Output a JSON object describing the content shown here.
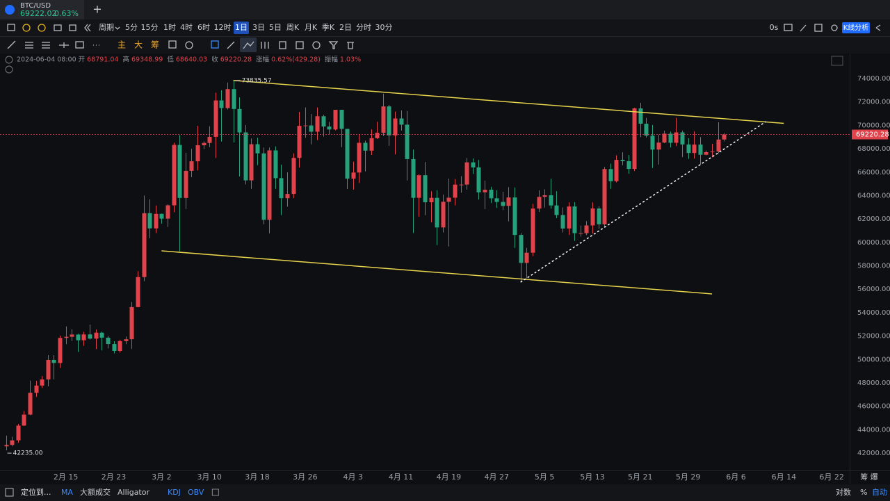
{
  "tab": {
    "symbol": "BTC/USD",
    "price": "69222.02",
    "change": "0.63%",
    "add": "+"
  },
  "periods": {
    "label": "周期",
    "items": [
      "5分",
      "15分",
      "1时",
      "4时",
      "6时",
      "12时",
      "1日",
      "3日",
      "5日",
      "周K",
      "月K",
      "季K",
      "2日",
      "分时",
      "30分"
    ],
    "active": 6
  },
  "toolbar_right": {
    "timer": "0s",
    "analysis": "K线分析"
  },
  "draw_tools": [
    "主",
    "大",
    "筹"
  ],
  "info": {
    "date": "2024-06-04 08:00",
    "open": "开",
    "high": "高",
    "low": "低",
    "close": "收",
    "change_label": "涨幅",
    "change": "0.62%(429.28)",
    "amp_label": "振幅",
    "amp": "1.03%"
  },
  "bottom": {
    "locate": "定位到...",
    "indicators": [
      "MA",
      "大额成交",
      "Alligator",
      "KDJ",
      "OBV"
    ],
    "right": [
      "对数",
      "%",
      "自动"
    ],
    "corner": "筹 爆"
  },
  "chart_data": {
    "type": "candlestick",
    "up_color": "#e0434b",
    "down_color": "#26a17b",
    "x": [
      "2024-02-05",
      "2024-02-06",
      "2024-02-07",
      "2024-02-08",
      "2024-02-09",
      "2024-02-10",
      "2024-02-11",
      "2024-02-12",
      "2024-02-13",
      "2024-02-14",
      "2024-02-15",
      "2024-02-16",
      "2024-02-17",
      "2024-02-18",
      "2024-02-19",
      "2024-02-20",
      "2024-02-21",
      "2024-02-22",
      "2024-02-23",
      "2024-02-24",
      "2024-02-25",
      "2024-02-26",
      "2024-02-27",
      "2024-02-28",
      "2024-02-29",
      "2024-03-01",
      "2024-03-02",
      "2024-03-03",
      "2024-03-04",
      "2024-03-05",
      "2024-03-06",
      "2024-03-07",
      "2024-03-08",
      "2024-03-09",
      "2024-03-10",
      "2024-03-11",
      "2024-03-12",
      "2024-03-13",
      "2024-03-14",
      "2024-03-15",
      "2024-03-16",
      "2024-03-17",
      "2024-03-18",
      "2024-03-19",
      "2024-03-20",
      "2024-03-21",
      "2024-03-22",
      "2024-03-23",
      "2024-03-24",
      "2024-03-25",
      "2024-03-26",
      "2024-03-27",
      "2024-03-28",
      "2024-03-29",
      "2024-03-30",
      "2024-03-31",
      "2024-04-01",
      "2024-04-02",
      "2024-04-03",
      "2024-04-04",
      "2024-04-05",
      "2024-04-06",
      "2024-04-07",
      "2024-04-08",
      "2024-04-09",
      "2024-04-10",
      "2024-04-11",
      "2024-04-12",
      "2024-04-13",
      "2024-04-14",
      "2024-04-15",
      "2024-04-16",
      "2024-04-17",
      "2024-04-18",
      "2024-04-19",
      "2024-04-20",
      "2024-04-21",
      "2024-04-22",
      "2024-04-23",
      "2024-04-24",
      "2024-04-25",
      "2024-04-26",
      "2024-04-27",
      "2024-04-28",
      "2024-04-29",
      "2024-04-30",
      "2024-05-01",
      "2024-05-02",
      "2024-05-03",
      "2024-05-04",
      "2024-05-05",
      "2024-05-06",
      "2024-05-07",
      "2024-05-08",
      "2024-05-09",
      "2024-05-10",
      "2024-05-11",
      "2024-05-12",
      "2024-05-13",
      "2024-05-14",
      "2024-05-15",
      "2024-05-16",
      "2024-05-17",
      "2024-05-18",
      "2024-05-19",
      "2024-05-20",
      "2024-05-21",
      "2024-05-22",
      "2024-05-23",
      "2024-05-24",
      "2024-05-25",
      "2024-05-26",
      "2024-05-27",
      "2024-05-28",
      "2024-05-29",
      "2024-05-30",
      "2024-05-31",
      "2024-06-01",
      "2024-06-02",
      "2024-06-03",
      "2024-06-04"
    ],
    "open": [
      42580,
      42700,
      43090,
      44350,
      45290,
      47150,
      47770,
      48290,
      49960,
      49700,
      51840,
      51940,
      52130,
      51640,
      52140,
      51780,
      52290,
      51860,
      51320,
      50730,
      51570,
      51730,
      54480,
      57040,
      62500,
      61200,
      62440,
      62030,
      63170,
      68330,
      63800,
      66110,
      66930,
      68300,
      68500,
      69020,
      72130,
      71480,
      73100,
      71400,
      69400,
      65300,
      68390,
      67610,
      61930,
      67860,
      65490,
      63780,
      64140,
      67220,
      69960,
      69990,
      69460,
      70780,
      69900,
      69650,
      71330,
      69700,
      65450,
      65970,
      68510,
      67840,
      68900,
      69360,
      71620,
      69140,
      70590,
      70060,
      67120,
      63810,
      65740,
      63430,
      63810,
      61280,
      63470,
      63820,
      64940,
      64940,
      66840,
      66410,
      64280,
      64500,
      63770,
      63460,
      63120,
      63840,
      60640,
      58250,
      59120,
      62890,
      63890,
      64030,
      63160,
      62340,
      61190,
      63070,
      60790,
      60790,
      61450,
      62900,
      61550,
      66270,
      65230,
      67050,
      66940,
      66280,
      71450,
      70140,
      69120,
      67930,
      68530,
      69290,
      68510,
      69400,
      68370,
      67640,
      68360,
      67490,
      67710,
      67760,
      68791.04
    ],
    "high": [
      43490,
      43390,
      44500,
      45580,
      48200,
      48170,
      48590,
      50370,
      50370,
      52040,
      52820,
      52570,
      52200,
      52360,
      52980,
      52560,
      52370,
      52000,
      51560,
      51680,
      51960,
      54910,
      57540,
      64000,
      63680,
      63150,
      62460,
      63250,
      68520,
      69170,
      67660,
      68000,
      69960,
      68620,
      69920,
      72800,
      73000,
      73660,
      73835.57,
      72390,
      70030,
      68880,
      68950,
      68100,
      68100,
      68200,
      66640,
      65990,
      67610,
      71150,
      71530,
      70970,
      71530,
      70900,
      70290,
      71330,
      71340,
      69700,
      66900,
      69250,
      68700,
      69660,
      70310,
      72700,
      71750,
      71170,
      71280,
      71230,
      67930,
      65820,
      66870,
      64370,
      64470,
      64080,
      65450,
      65420,
      65660,
      67210,
      67180,
      67050,
      65280,
      64750,
      64470,
      64320,
      64720,
      64700,
      60800,
      59540,
      63300,
      64460,
      64530,
      65440,
      64380,
      62990,
      63430,
      63440,
      61430,
      61820,
      63420,
      63080,
      66450,
      66730,
      67440,
      67700,
      67470,
      71500,
      71920,
      70630,
      70040,
      69210,
      69540,
      69470,
      70650,
      69550,
      68900,
      69500,
      69000,
      67860,
      68420,
      70280,
      69348.99
    ],
    "low": [
      42235,
      42580,
      42880,
      44330,
      45240,
      46800,
      47560,
      47710,
      48300,
      49280,
      51310,
      51580,
      50640,
      51170,
      51700,
      50890,
      50770,
      50950,
      50520,
      50590,
      51310,
      50900,
      54450,
      56690,
      60360,
      60800,
      61600,
      61320,
      62580,
      59250,
      62850,
      65580,
      66150,
      67990,
      68140,
      67210,
      68620,
      71350,
      68530,
      65630,
      64960,
      64580,
      66600,
      61550,
      60780,
      64580,
      62330,
      63050,
      63790,
      66390,
      68940,
      68380,
      68750,
      69040,
      69240,
      69570,
      68150,
      64560,
      64510,
      65080,
      66070,
      67470,
      68840,
      69080,
      68250,
      67520,
      69560,
      65290,
      60800,
      62200,
      62330,
      61710,
      59770,
      60850,
      59650,
      63170,
      64250,
      64510,
      65850,
      63660,
      62840,
      63360,
      62950,
      62770,
      61800,
      59530,
      56600,
      56940,
      58820,
      62600,
      62980,
      62880,
      62070,
      60850,
      60640,
      60130,
      60500,
      60630,
      60760,
      61170,
      61340,
      64580,
      65130,
      66600,
      65860,
      66090,
      68990,
      68960,
      66360,
      66650,
      68480,
      68110,
      68240,
      67290,
      67140,
      67150,
      66630,
      67440,
      67270,
      67630,
      68640.03
    ],
    "close": [
      42700,
      43090,
      44350,
      45290,
      47150,
      47770,
      48290,
      49960,
      49700,
      51840,
      51940,
      52130,
      51640,
      52140,
      51780,
      52290,
      51860,
      51320,
      50730,
      51570,
      51730,
      54480,
      57040,
      62500,
      61200,
      62440,
      62030,
      63170,
      68330,
      63800,
      66110,
      66930,
      68300,
      68500,
      69020,
      72130,
      71480,
      73100,
      71400,
      69400,
      65300,
      68390,
      67610,
      61930,
      67860,
      65490,
      63780,
      64140,
      67220,
      69960,
      69990,
      69460,
      70780,
      69900,
      69650,
      71330,
      69700,
      65450,
      65970,
      68510,
      67840,
      68900,
      69360,
      71620,
      69140,
      70590,
      70060,
      67120,
      63810,
      65740,
      63430,
      63810,
      61280,
      63470,
      63820,
      64940,
      64940,
      66840,
      66410,
      64280,
      64500,
      63770,
      63460,
      63120,
      63840,
      60640,
      58250,
      59120,
      62890,
      63890,
      64030,
      63160,
      62340,
      61190,
      63070,
      60790,
      60790,
      61450,
      62900,
      61550,
      66270,
      65230,
      67050,
      66940,
      66280,
      71450,
      70140,
      69120,
      67930,
      68530,
      69290,
      68510,
      69400,
      68370,
      67640,
      68360,
      67490,
      67710,
      67760,
      68790,
      69220.28
    ],
    "low_label": "42235.00",
    "xlim": [
      "2024-02-04",
      "2024-06-25"
    ],
    "xticks": [
      {
        "value": "2024-02-15",
        "label": "2月 15"
      },
      {
        "value": "2024-02-23",
        "label": "2月 23"
      },
      {
        "value": "2024-03-02",
        "label": "3月 2"
      },
      {
        "value": "2024-03-10",
        "label": "3月 10"
      },
      {
        "value": "2024-03-18",
        "label": "3月 18"
      },
      {
        "value": "2024-03-26",
        "label": "3月 26"
      },
      {
        "value": "2024-04-03",
        "label": "4月 3"
      },
      {
        "value": "2024-04-11",
        "label": "4月 11"
      },
      {
        "value": "2024-04-19",
        "label": "4月 19"
      },
      {
        "value": "2024-04-27",
        "label": "4月 27"
      },
      {
        "value": "2024-05-05",
        "label": "5月 5"
      },
      {
        "value": "2024-05-13",
        "label": "5月 13"
      },
      {
        "value": "2024-05-21",
        "label": "5月 21"
      },
      {
        "value": "2024-05-29",
        "label": "5月 29"
      },
      {
        "value": "2024-06-06",
        "label": "6月 6"
      },
      {
        "value": "2024-06-14",
        "label": "6月 14"
      },
      {
        "value": "2024-06-22",
        "label": "6月 22"
      }
    ],
    "ylim": [
      40520,
      76080
    ],
    "yticks": [
      {
        "value": 42000,
        "label": "42000.00"
      },
      {
        "value": 44000,
        "label": "44000.00"
      },
      {
        "value": 46000,
        "label": "46000.00"
      },
      {
        "value": 48000,
        "label": "48000.00"
      },
      {
        "value": 50000,
        "label": "50000.00"
      },
      {
        "value": 52000,
        "label": "52000.00"
      },
      {
        "value": 54000,
        "label": "54000.00"
      },
      {
        "value": 56000,
        "label": "56000.00"
      },
      {
        "value": 58000,
        "label": "58000.00"
      },
      {
        "value": 60000,
        "label": "60000.00"
      },
      {
        "value": 62000,
        "label": "62000.00"
      },
      {
        "value": 64000,
        "label": "64000.00"
      },
      {
        "value": 66000,
        "label": "66000.00"
      },
      {
        "value": 68000,
        "label": "68000.00"
      },
      {
        "value": 70000,
        "label": "70000.00"
      },
      {
        "value": 72000,
        "label": "72000.00"
      },
      {
        "value": 74000,
        "label": "74000.00"
      }
    ],
    "grid": false,
    "drawings": [
      {
        "color": "#e8d44d",
        "dashed": false,
        "points": [
          {
            "x": "2024-03-14",
            "y": 73835.57
          },
          {
            "x": "2024-06-14",
            "y": 70170
          }
        ]
      },
      {
        "color": "#e8d44d",
        "dashed": false,
        "points": [
          {
            "x": "2024-03-02",
            "y": 59280
          },
          {
            "x": "2024-06-02",
            "y": 55600
          }
        ]
      },
      {
        "color": "#ffffff",
        "dashed": true,
        "points": [
          {
            "x": "2024-05-01",
            "y": 56600
          },
          {
            "x": "2024-06-11",
            "y": 70320
          }
        ]
      }
    ]
  }
}
